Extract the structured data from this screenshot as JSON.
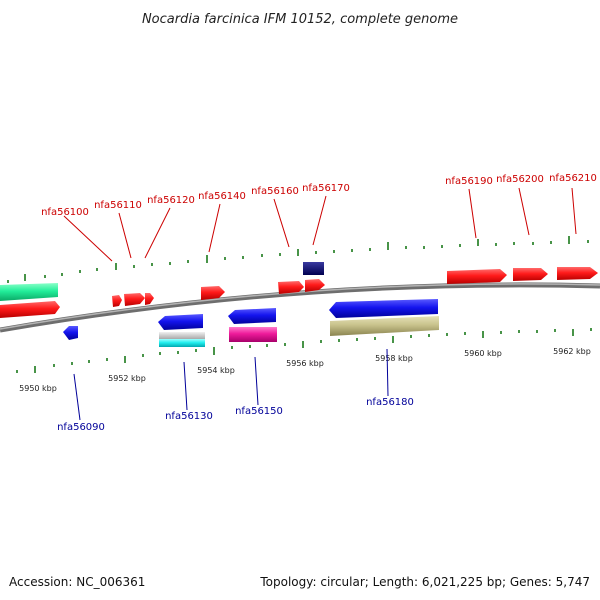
{
  "title": "Nocardia farcinica IFM 10152, complete genome",
  "footer": {
    "accession": "Accession: NC_006361",
    "summary": "Topology: circular; Length: 6,021,225 bp; Genes: 5,747"
  },
  "colors": {
    "forward_label": "#cc0000",
    "reverse_label": "#000099",
    "tick": "#1a7a1a",
    "backbone": "#8c8c8c"
  },
  "kbp_labels": [
    "5950 kbp",
    "5952 kbp",
    "5954 kbp",
    "5956 kbp",
    "5958 kbp",
    "5960 kbp",
    "5962 kbp"
  ],
  "forward_gene_labels": [
    "nfa56100",
    "nfa56110",
    "nfa56120",
    "nfa56140",
    "nfa56160",
    "nfa56170",
    "nfa56190",
    "nfa56200",
    "nfa56210"
  ],
  "reverse_gene_labels": [
    "nfa56090",
    "nfa56130",
    "nfa56150",
    "nfa56180"
  ]
}
